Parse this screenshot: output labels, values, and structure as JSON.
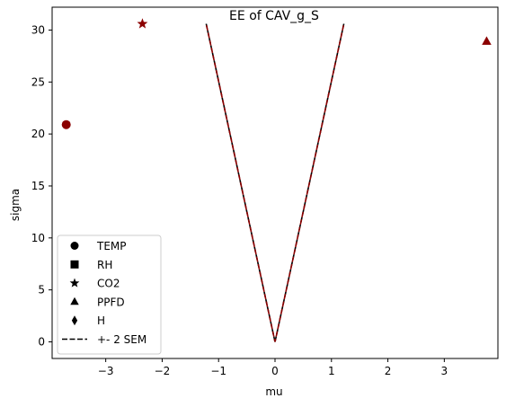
{
  "chart_data": {
    "type": "scatter",
    "title": "EE of CAV_g_S",
    "xlabel": "mu",
    "ylabel": "sigma",
    "xlim": [
      -3.95,
      3.95
    ],
    "ylim": [
      -1.6,
      32.2
    ],
    "xticks": [
      -3,
      -2,
      -1,
      0,
      1,
      2,
      3
    ],
    "yticks": [
      0,
      5,
      10,
      15,
      20,
      25,
      30
    ],
    "grid": false,
    "legend_position": "lower-left",
    "marker_color": "#8b0000",
    "series": [
      {
        "name": "TEMP",
        "marker": "circle",
        "points": [
          {
            "x": -3.7,
            "y": 20.9
          }
        ]
      },
      {
        "name": "RH",
        "marker": "square",
        "points": []
      },
      {
        "name": "CO2",
        "marker": "star",
        "points": [
          {
            "x": -2.35,
            "y": 30.6
          }
        ]
      },
      {
        "name": "PPFD",
        "marker": "triangle",
        "points": [
          {
            "x": 3.75,
            "y": 28.9
          }
        ]
      },
      {
        "name": "H",
        "marker": "diamond",
        "points": []
      }
    ],
    "sem_lines": {
      "name": "+- 2 SEM",
      "style": "dashed",
      "line_color": "#000000",
      "overlay_color": "#8b0000",
      "lines": [
        [
          {
            "x": 0,
            "y": 0
          },
          {
            "x": -1.22,
            "y": 30.6
          }
        ],
        [
          {
            "x": 0,
            "y": 0
          },
          {
            "x": 1.22,
            "y": 30.6
          }
        ]
      ]
    }
  }
}
